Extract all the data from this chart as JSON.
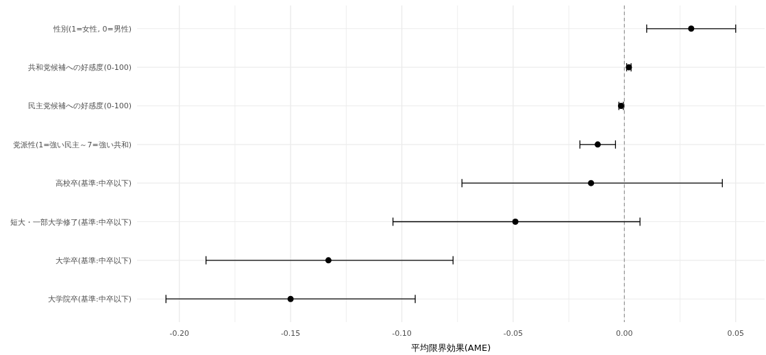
{
  "chart_data": {
    "type": "scatter",
    "orientation": "horizontal",
    "xlabel": "平均限界効果(AME)",
    "categories": [
      "性別(1=女性, 0=男性)",
      "共和党候補への好感度(0-100)",
      "民主党候補への好感度(0-100)",
      "党派性(1=強い民主～7=強い共和)",
      "高校卒(基準:中卒以下)",
      "短大・一部大学修了(基準:中卒以下)",
      "大学卒(基準:中卒以下)",
      "大学院卒(基準:中卒以下)"
    ],
    "values": [
      0.03,
      0.002,
      -0.0015,
      -0.012,
      -0.015,
      -0.049,
      -0.133,
      -0.15
    ],
    "errors": [
      [
        0.01,
        0.05
      ],
      [
        0.001,
        0.003
      ],
      [
        -0.0025,
        -0.0005
      ],
      [
        -0.02,
        -0.004
      ],
      [
        -0.073,
        0.044
      ],
      [
        -0.104,
        0.007
      ],
      [
        -0.188,
        -0.077
      ],
      [
        -0.206,
        -0.094
      ]
    ],
    "color": "#000000",
    "marker": "circle",
    "xlim": [
      -0.219,
      0.063
    ],
    "xticks": [
      {
        "value": -0.2,
        "label": "-0.20"
      },
      {
        "value": -0.175,
        "label": null
      },
      {
        "value": -0.15,
        "label": "-0.15"
      },
      {
        "value": -0.125,
        "label": null
      },
      {
        "value": -0.1,
        "label": "-0.10"
      },
      {
        "value": -0.075,
        "label": null
      },
      {
        "value": -0.05,
        "label": "-0.05"
      },
      {
        "value": -0.025,
        "label": null
      },
      {
        "value": 0,
        "label": "0.00"
      },
      {
        "value": 0.025,
        "label": null
      },
      {
        "value": 0.05,
        "label": "0.05"
      }
    ],
    "ref_lines": [
      {
        "axis": "x",
        "value": 0,
        "color": "#999999",
        "line_style": "dashed"
      }
    ],
    "grid": true
  }
}
